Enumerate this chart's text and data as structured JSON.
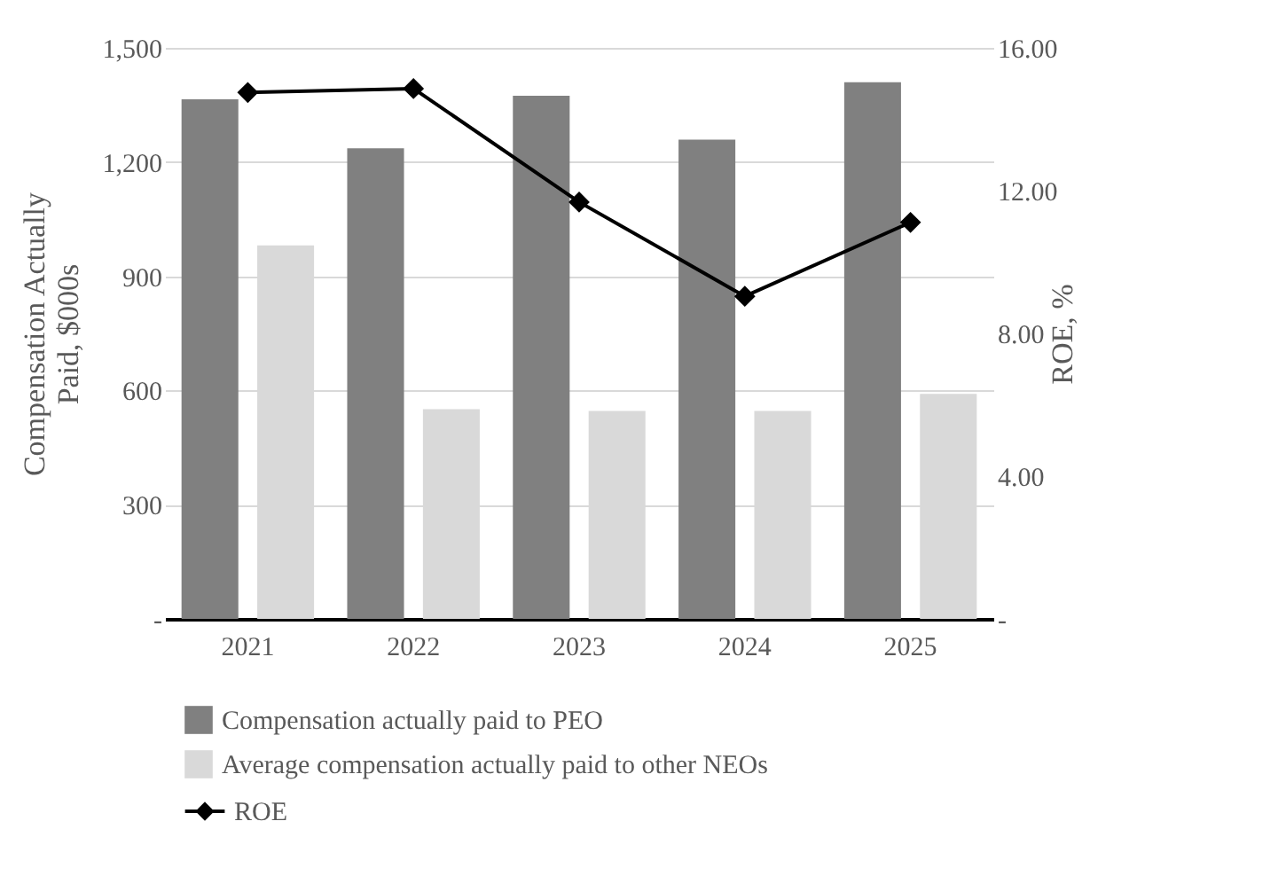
{
  "chart_data": {
    "type": "bar",
    "categories": [
      "2021",
      "2022",
      "2023",
      "2024",
      "2025"
    ],
    "ylabel": "Compensation Actually Paid, $000s",
    "y2label": "ROE, %",
    "ylim": [
      0,
      1500
    ],
    "yticks": [
      {
        "value": 0,
        "label": "-"
      },
      {
        "value": 300,
        "label": "300"
      },
      {
        "value": 600,
        "label": "600"
      },
      {
        "value": 900,
        "label": "900"
      },
      {
        "value": 1200,
        "label": "1,200"
      },
      {
        "value": 1500,
        "label": "1,500"
      }
    ],
    "y2lim": [
      0,
      16
    ],
    "y2ticks": [
      {
        "value": 0,
        "label": "-"
      },
      {
        "value": 4,
        "label": "4.00"
      },
      {
        "value": 8,
        "label": "8.00"
      },
      {
        "value": 12,
        "label": "12.00"
      },
      {
        "value": 16,
        "label": "16.00"
      }
    ],
    "grid": "y",
    "legend": "bottom",
    "series": [
      {
        "name": "Compensation actually paid to PEO",
        "type": "bar",
        "color": "#808080",
        "values": [
          1365,
          1236,
          1374,
          1259,
          1410
        ]
      },
      {
        "name": "Average compensation actually paid to other NEOs",
        "type": "bar",
        "color": "#d9d9d9",
        "values": [
          981,
          551,
          546,
          546,
          591
        ]
      },
      {
        "name": "ROE",
        "type": "line",
        "axis": "y2",
        "color": "#000000",
        "marker": "diamond",
        "line_style": "solid",
        "values": [
          14.75,
          14.86,
          11.68,
          9.04,
          11.11
        ]
      }
    ]
  }
}
